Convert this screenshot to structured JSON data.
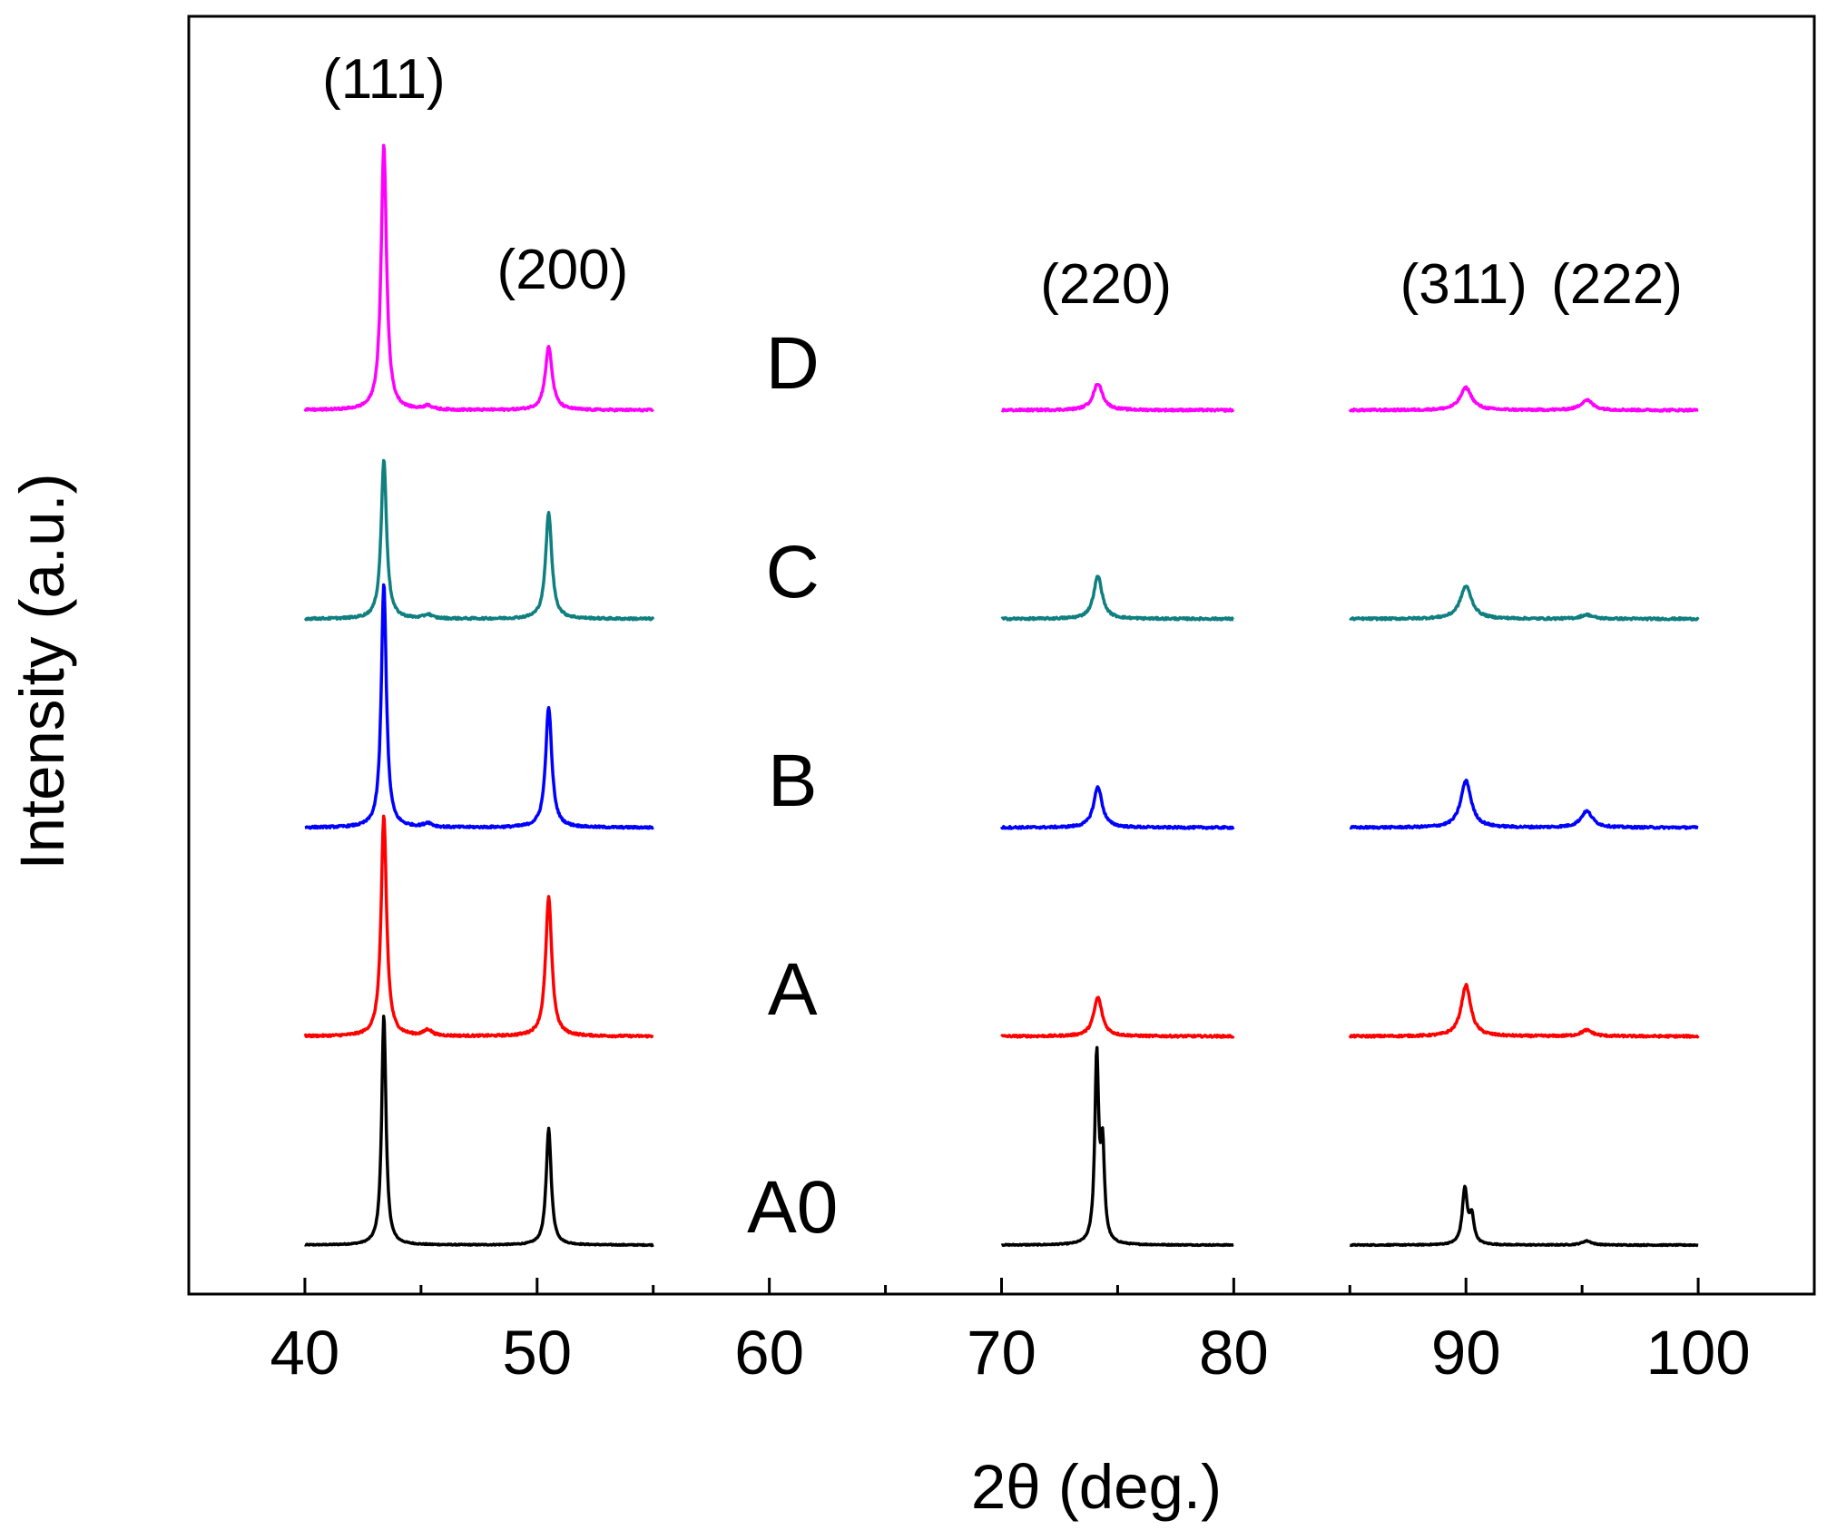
{
  "chart_data": {
    "type": "line",
    "title": "",
    "xlabel": "2θ (deg.)",
    "ylabel": "Intensity (a.u.)",
    "xlim": [
      35,
      105
    ],
    "x_ticks": [
      40,
      50,
      60,
      70,
      80,
      90,
      100
    ],
    "y_ticks_shown": false,
    "grid": false,
    "legend": "none",
    "segments": [
      [
        40,
        55
      ],
      [
        70,
        80
      ],
      [
        85,
        100
      ]
    ],
    "peak_labels": [
      {
        "text": "(111)",
        "x": 43.4
      },
      {
        "text": "(200)",
        "x": 51.1
      },
      {
        "text": "(220)",
        "x": 74.5
      },
      {
        "text": "(311)",
        "x": 89.9
      },
      {
        "text": "(222)",
        "x": 96.5
      }
    ],
    "series": [
      {
        "name": "A0",
        "color": "#000000",
        "offset": 0,
        "noise": 0.0025,
        "peaks": [
          {
            "x": 43.4,
            "h": 1.13,
            "w": 0.11
          },
          {
            "x": 50.5,
            "h": 0.57,
            "w": 0.13
          },
          {
            "x": 74.1,
            "h": 0.91,
            "w": 0.1
          },
          {
            "x": 74.35,
            "h": 0.45,
            "w": 0.1
          },
          {
            "x": 89.95,
            "h": 0.27,
            "w": 0.13
          },
          {
            "x": 90.25,
            "h": 0.13,
            "w": 0.12
          },
          {
            "x": 95.2,
            "h": 0.02,
            "w": 0.25
          }
        ]
      },
      {
        "name": "A",
        "color": "#ff0000",
        "offset": 1.0,
        "noise": 0.005,
        "peaks": [
          {
            "x": 43.4,
            "h": 1.08,
            "w": 0.14
          },
          {
            "x": 45.3,
            "h": 0.03,
            "w": 0.2
          },
          {
            "x": 50.5,
            "h": 0.68,
            "w": 0.16
          },
          {
            "x": 74.15,
            "h": 0.19,
            "w": 0.22
          },
          {
            "x": 90.0,
            "h": 0.25,
            "w": 0.25
          },
          {
            "x": 95.2,
            "h": 0.03,
            "w": 0.3
          }
        ]
      },
      {
        "name": "B",
        "color": "#0000ff",
        "offset": 2.0,
        "noise": 0.005,
        "peaks": [
          {
            "x": 43.4,
            "h": 1.2,
            "w": 0.13
          },
          {
            "x": 45.3,
            "h": 0.02,
            "w": 0.2
          },
          {
            "x": 50.5,
            "h": 0.59,
            "w": 0.16
          },
          {
            "x": 74.15,
            "h": 0.2,
            "w": 0.22
          },
          {
            "x": 90.0,
            "h": 0.23,
            "w": 0.27
          },
          {
            "x": 95.2,
            "h": 0.08,
            "w": 0.3
          }
        ]
      },
      {
        "name": "C",
        "color": "#0f7f7f",
        "offset": 3.0,
        "noise": 0.005,
        "peaks": [
          {
            "x": 43.4,
            "h": 0.78,
            "w": 0.14
          },
          {
            "x": 45.3,
            "h": 0.02,
            "w": 0.2
          },
          {
            "x": 50.5,
            "h": 0.52,
            "w": 0.16
          },
          {
            "x": 74.15,
            "h": 0.21,
            "w": 0.22
          },
          {
            "x": 90.0,
            "h": 0.16,
            "w": 0.3
          },
          {
            "x": 95.2,
            "h": 0.02,
            "w": 0.3
          }
        ]
      },
      {
        "name": "D",
        "color": "#ff00ff",
        "offset": 4.0,
        "noise": 0.005,
        "peaks": [
          {
            "x": 43.4,
            "h": 1.3,
            "w": 0.14
          },
          {
            "x": 45.3,
            "h": 0.02,
            "w": 0.2
          },
          {
            "x": 50.5,
            "h": 0.31,
            "w": 0.18
          },
          {
            "x": 74.15,
            "h": 0.13,
            "w": 0.25
          },
          {
            "x": 90.0,
            "h": 0.11,
            "w": 0.3
          },
          {
            "x": 95.2,
            "h": 0.05,
            "w": 0.3
          }
        ]
      }
    ]
  }
}
